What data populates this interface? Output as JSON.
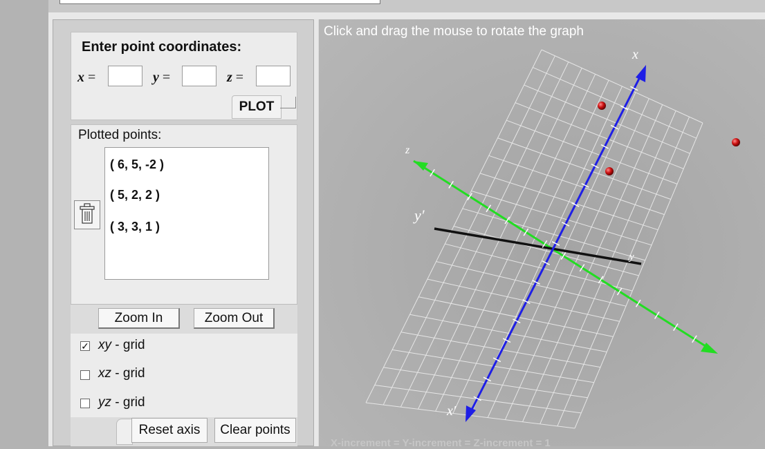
{
  "coords": {
    "title": "Enter point coordinates:",
    "x_label": "x",
    "y_label": "y",
    "z_label": "z",
    "eq": "=",
    "x_value": "",
    "y_value": "",
    "z_value": "",
    "plot_label": "PLOT"
  },
  "points": {
    "title": "Plotted points:",
    "items": [
      "( 6, 5, -2 )",
      "( 5, 2, 2 )",
      "( 3, 3, 1 )"
    ]
  },
  "zoom": {
    "in_label": "Zoom In",
    "out_label": "Zoom Out"
  },
  "grids": [
    {
      "axis": "xy",
      "suffix": " - grid",
      "checked": true
    },
    {
      "axis": "xz",
      "suffix": " - grid",
      "checked": false
    },
    {
      "axis": "yz",
      "suffix": " - grid",
      "checked": false
    }
  ],
  "actions": {
    "reset_label": "Reset axis",
    "clear_label": "Clear points"
  },
  "graph": {
    "instruction": "Click and drag the mouse to rotate the graph",
    "increment": "X-increment = Y-increment = Z-increment = 1",
    "axis_labels": {
      "x": "x",
      "x_neg": "x′",
      "y": "y",
      "y_neg": "y′",
      "z": "z"
    },
    "axis_colors": {
      "x": "#1e1ee6",
      "y": "#111111",
      "z": "#22dd22"
    },
    "point_color": "#cc1111",
    "checkmark": "✓",
    "trash_icon": "trash-icon"
  }
}
